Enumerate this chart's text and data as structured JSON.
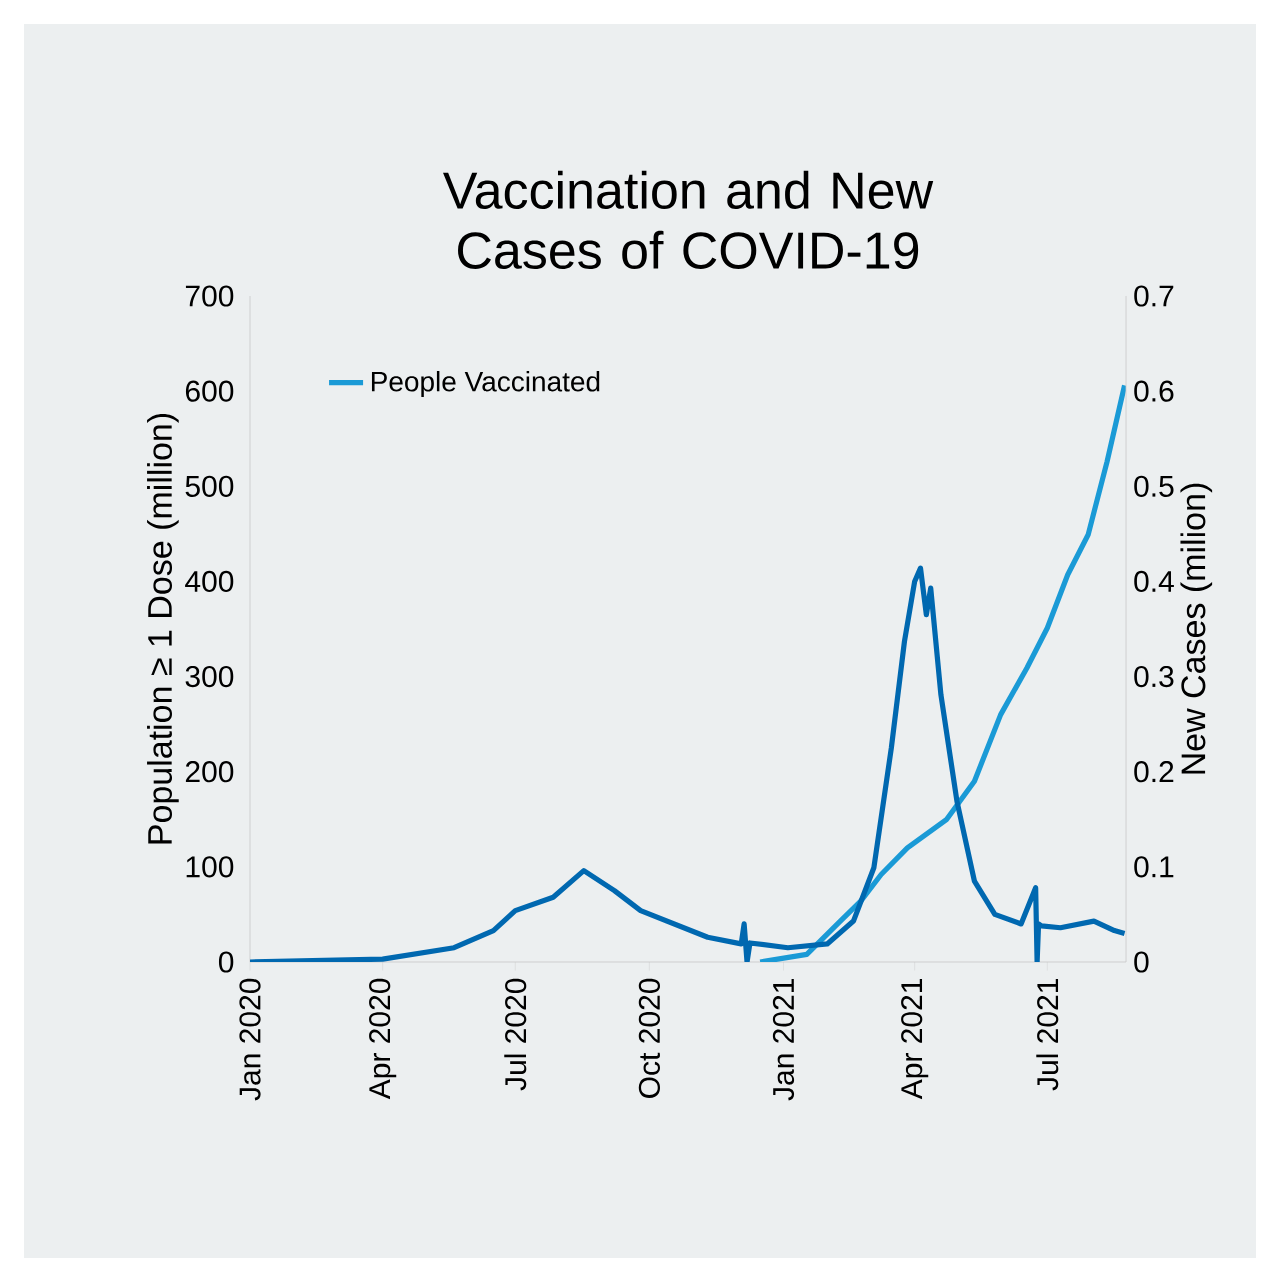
{
  "chart_data": {
    "type": "line",
    "title": "Vaccination and New Cases of COVID-19",
    "ylabel": "Population ≥ 1 Dose (million)",
    "y2label": "New Cases (milion)",
    "legend": "top left",
    "xlim": [
      "2020-01-01",
      "2021-08-24"
    ],
    "xticks": [
      {
        "value": "2020-01-01",
        "label": "Jan 2020"
      },
      {
        "value": "2020-04-01",
        "label": "Apr 2020"
      },
      {
        "value": "2020-07-01",
        "label": "Jul 2020"
      },
      {
        "value": "2020-10-01",
        "label": "Oct 2020"
      },
      {
        "value": "2021-01-01",
        "label": "Jan 2021"
      },
      {
        "value": "2021-04-01",
        "label": "Apr 2021"
      },
      {
        "value": "2021-07-01",
        "label": "Jul 2021"
      }
    ],
    "ylim": [
      0,
      700
    ],
    "yticks": [
      0,
      100,
      200,
      300,
      400,
      500,
      600,
      700
    ],
    "y2lim": [
      0,
      0.7
    ],
    "y2ticks": [
      0,
      0.1,
      0.2,
      0.3,
      0.4,
      0.5,
      0.6,
      0.7
    ],
    "series": [
      {
        "name": "People Vaccinated",
        "color": "#1a9ad6",
        "x": [
          "2020-12-16",
          "2021-01-17",
          "2021-02-09",
          "2021-02-23",
          "2021-03-09",
          "2021-03-27",
          "2021-04-23",
          "2021-05-12",
          "2021-05-30",
          "2021-06-17",
          "2021-07-01",
          "2021-07-15",
          "2021-07-29",
          "2021-08-11",
          "2021-08-23"
        ],
        "values": [
          0,
          8,
          43,
          64,
          92,
          120,
          150,
          190,
          260,
          309,
          351,
          407,
          449,
          526,
          606
        ]
      },
      {
        "color": "#0068b0",
        "axis": "y2",
        "x": [
          "2020-01-01",
          "2020-04-01",
          "2020-05-20",
          "2020-06-16",
          "2020-07-01",
          "2020-07-27",
          "2020-08-17",
          "2020-09-07",
          "2020-09-25",
          "2020-10-18",
          "2020-11-10",
          "2020-12-03",
          "2020-12-05",
          "2020-12-07",
          "2020-12-09",
          "2021-01-04",
          "2021-01-31",
          "2021-02-18",
          "2021-03-04",
          "2021-03-16",
          "2021-03-25",
          "2021-04-01",
          "2021-04-05",
          "2021-04-09",
          "2021-04-12",
          "2021-04-19",
          "2021-04-30",
          "2021-05-12",
          "2021-05-26",
          "2021-06-13",
          "2021-06-23",
          "2021-06-24",
          "2021-06-25",
          "2021-06-27",
          "2021-07-10",
          "2021-08-02",
          "2021-08-16",
          "2021-08-23"
        ],
        "values": [
          0,
          0.003,
          0.015,
          0.033,
          0.054,
          0.068,
          0.096,
          0.075,
          0.054,
          0.04,
          0.026,
          0.019,
          0.04,
          0,
          0.02,
          0.015,
          0.019,
          0.043,
          0.099,
          0.225,
          0.337,
          0.4,
          0.414,
          0.365,
          0.393,
          0.281,
          0.169,
          0.085,
          0.05,
          0.04,
          0.078,
          0,
          0.04,
          0.038,
          0.036,
          0.043,
          0.033,
          0.03
        ]
      }
    ]
  }
}
